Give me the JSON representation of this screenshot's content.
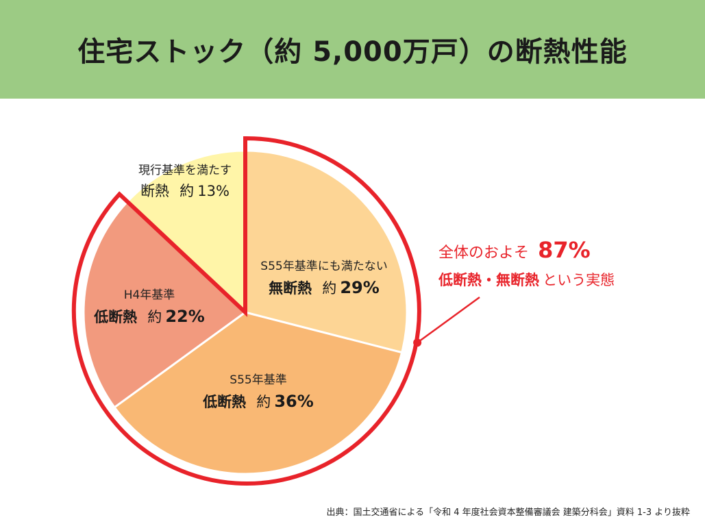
{
  "title": "住宅ストック（約 5,000万戸）の断熱性能",
  "chart_data": {
    "type": "pie",
    "unit": "%",
    "slices": [
      {
        "sub": "S55年基準にも満たない",
        "main": "無断熱",
        "prefix": "約",
        "value": 29,
        "color": "#fdd595"
      },
      {
        "sub": "S55年基準",
        "main": "低断熱",
        "prefix": "約",
        "value": 36,
        "color": "#f9b874"
      },
      {
        "sub": "H4年基準",
        "main": "低断熱",
        "prefix": "約",
        "value": 22,
        "color": "#f29a7e"
      },
      {
        "sub": "現行基準を満たす",
        "main": "断熱",
        "prefix": "約",
        "value": 13,
        "color": "#fff5a8"
      }
    ],
    "highlight_color": "#e8232a",
    "callout": {
      "line1_prefix": "全体のおよそ",
      "value": "87%",
      "line2_bold": "低断熱・無断熱",
      "line2_rest": "という実態"
    }
  },
  "source": "出典：国土交通省による「令和 4 年度社会資本整備審議会 建築分科会」資料 1-3 より抜粋"
}
